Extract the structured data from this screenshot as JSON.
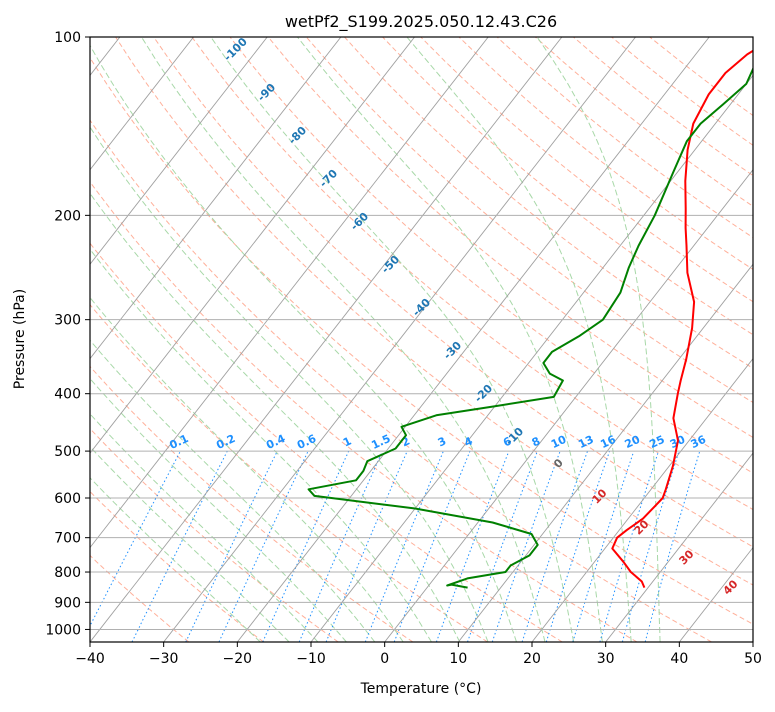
{
  "chart_data": {
    "type": "line",
    "chart_kind": "skew-T log-P diagram",
    "title": "wetPf2_S199.2025.050.12.43.C26",
    "xlabel": "Temperature (°C)",
    "ylabel": "Pressure (hPa)",
    "xlim": [
      -40,
      50
    ],
    "ylim": [
      1050,
      100
    ],
    "y_scale": "log",
    "grid": true,
    "x_ticks": [
      -40,
      -30,
      -20,
      -10,
      0,
      10,
      20,
      30,
      40,
      50
    ],
    "y_ticks": [
      100,
      200,
      300,
      400,
      500,
      600,
      700,
      800,
      900,
      1000
    ],
    "colors": {
      "temperature": "#ff0000",
      "dewpoint": "#008000",
      "isotherm": "#a0a0a0",
      "dry_adiabat": "#ffb09a",
      "moist_adiabat": "#a8d8a8",
      "mixing_ratio": "#1e90ff",
      "dry_adiabat_label": "#d62728",
      "moist_adiabat_label": "#1f77b4"
    },
    "series": [
      {
        "key": "temperature",
        "points": [
          [
            29.5,
            850
          ],
          [
            28.5,
            830
          ],
          [
            26,
            800
          ],
          [
            24,
            770
          ],
          [
            21,
            730
          ],
          [
            20.5,
            700
          ],
          [
            21,
            680
          ],
          [
            22,
            650
          ],
          [
            22.3,
            620
          ],
          [
            22.5,
            600
          ],
          [
            22,
            580
          ],
          [
            20.5,
            530
          ],
          [
            18.5,
            480
          ],
          [
            15.5,
            440
          ],
          [
            13.5,
            400
          ],
          [
            12.5,
            380
          ],
          [
            11,
            350
          ],
          [
            8.5,
            310
          ],
          [
            6,
            280
          ],
          [
            2,
            250
          ],
          [
            -1,
            225
          ],
          [
            -3,
            210
          ],
          [
            -5,
            195
          ],
          [
            -8,
            175
          ],
          [
            -11,
            155
          ],
          [
            -13,
            140
          ],
          [
            -14,
            125
          ],
          [
            -14,
            115
          ],
          [
            -13,
            107
          ],
          [
            -11,
            100
          ]
        ]
      },
      {
        "key": "dewpoint",
        "points": [
          [
            5.5,
            850
          ],
          [
            3,
            840
          ],
          [
            2.5,
            843
          ],
          [
            4.5,
            820
          ],
          [
            9,
            800
          ],
          [
            9,
            780
          ],
          [
            10.5,
            750
          ],
          [
            10.5,
            720
          ],
          [
            8.5,
            690
          ],
          [
            2,
            660
          ],
          [
            -10,
            625
          ],
          [
            -25,
            595
          ],
          [
            -26.5,
            580
          ],
          [
            -21,
            560
          ],
          [
            -21,
            540
          ],
          [
            -21.5,
            520
          ],
          [
            -19,
            495
          ],
          [
            -19,
            470
          ],
          [
            -20.5,
            455
          ],
          [
            -17,
            435
          ],
          [
            -10,
            420
          ],
          [
            -3,
            405
          ],
          [
            -3.5,
            380
          ],
          [
            -6,
            370
          ],
          [
            -8,
            355
          ],
          [
            -8,
            340
          ],
          [
            -6,
            320
          ],
          [
            -4.5,
            300
          ],
          [
            -5,
            270
          ],
          [
            -6.5,
            245
          ],
          [
            -7.5,
            225
          ],
          [
            -8.5,
            200
          ],
          [
            -10.5,
            170
          ],
          [
            -12,
            150
          ],
          [
            -12,
            140
          ],
          [
            -11,
            130
          ],
          [
            -10,
            120
          ],
          [
            -11,
            110
          ],
          [
            -11.5,
            100
          ]
        ]
      }
    ],
    "dry_adiabat_labels": [
      "0",
      "10",
      "20",
      "30",
      "40"
    ],
    "moist_adiabat_labels": [
      "-100",
      "-90",
      "-80",
      "-70",
      "-60",
      "-50",
      "-40",
      "-30",
      "-20",
      "-10"
    ],
    "mixing_ratio_labels": [
      "0.1",
      "0.2",
      "0.4",
      "0.6",
      "1",
      "1.5",
      "2",
      "3",
      "4",
      "6",
      "8",
      "10",
      "13",
      "16",
      "20",
      "25",
      "30",
      "36"
    ]
  }
}
